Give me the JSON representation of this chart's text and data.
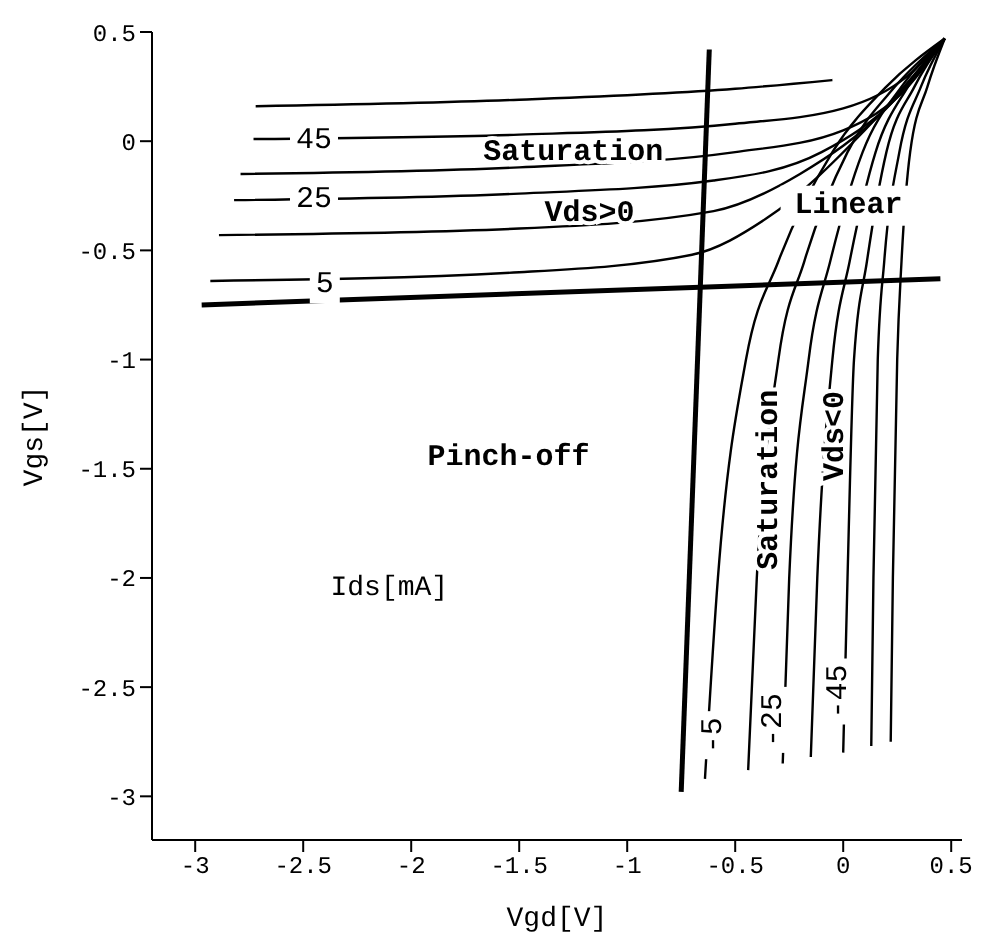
{
  "chart_data": {
    "type": "line",
    "xlabel": "Vgd[V]",
    "ylabel": "Vgs[V]",
    "xlim": [
      -3.2,
      0.55
    ],
    "ylim": [
      -3.2,
      0.5
    ],
    "xticks": [
      -3,
      -2.5,
      -2,
      -1.5,
      -1,
      -0.5,
      0,
      0.5
    ],
    "yticks": [
      -3,
      -2.5,
      -2,
      -1.5,
      -1,
      -0.5,
      0,
      0.5
    ],
    "marker": "none",
    "line_style": "solid",
    "series": [
      {
        "color": "#000000",
        "x": [
          -2.72,
          -1.5,
          -0.5,
          -0.05
        ],
        "values": [
          0.16,
          0.19,
          0.24,
          0.28
        ]
      },
      {
        "color": "#000000",
        "x": [
          -2.73,
          -1.5,
          -0.5,
          0,
          0.3,
          0.47
        ],
        "values": [
          0.01,
          0.03,
          0.08,
          0.15,
          0.3,
          0.47
        ]
      },
      {
        "color": "#000000",
        "x": [
          -2.79,
          -1.5,
          -0.5,
          0,
          0.3,
          0.47
        ],
        "values": [
          -0.15,
          -0.12,
          -0.05,
          0.05,
          0.25,
          0.47
        ]
      },
      {
        "color": "#000000",
        "x": [
          -2.82,
          -1.5,
          -0.6,
          -0.1,
          0.25,
          0.47
        ],
        "values": [
          -0.27,
          -0.24,
          -0.18,
          -0.05,
          0.2,
          0.47
        ]
      },
      {
        "color": "#000000",
        "x": [
          -2.89,
          -1.5,
          -0.6,
          -0.2,
          0.2,
          0.47
        ],
        "values": [
          -0.43,
          -0.4,
          -0.32,
          -0.15,
          0.15,
          0.47
        ]
      },
      {
        "color": "#000000",
        "x": [
          -2.93,
          -1.5,
          -0.7,
          -0.35,
          0.1,
          0.47
        ],
        "values": [
          -0.64,
          -0.6,
          -0.52,
          -0.35,
          0.05,
          0.47
        ]
      },
      {
        "color": "#000000",
        "x": [
          -0.64,
          -0.58,
          -0.45,
          -0.3,
          -0.05,
          0.2,
          0.47
        ],
        "values": [
          -2.92,
          -2,
          -1,
          -0.55,
          -0.05,
          0.25,
          0.47
        ]
      },
      {
        "color": "#000000",
        "x": [
          -0.44,
          -0.4,
          -0.3,
          -0.18,
          0.02,
          0.24,
          0.47
        ],
        "values": [
          -2.88,
          -2,
          -1,
          -0.55,
          -0.05,
          0.25,
          0.47
        ]
      },
      {
        "color": "#000000",
        "x": [
          -0.28,
          -0.25,
          -0.16,
          -0.06,
          0.09,
          0.27,
          0.47
        ],
        "values": [
          -2.85,
          -2,
          -1,
          -0.55,
          -0.05,
          0.25,
          0.47
        ]
      },
      {
        "color": "#000000",
        "x": [
          -0.15,
          -0.12,
          -0.05,
          0.03,
          0.15,
          0.3,
          0.47
        ],
        "values": [
          -2.82,
          -2,
          -1,
          -0.55,
          -0.05,
          0.25,
          0.47
        ]
      },
      {
        "color": "#000000",
        "x": [
          0,
          0.02,
          0.05,
          0.11,
          0.2,
          0.33,
          0.47
        ],
        "values": [
          -2.8,
          -2,
          -1,
          -0.55,
          -0.05,
          0.25,
          0.47
        ]
      },
      {
        "color": "#000000",
        "x": [
          0.13,
          0.14,
          0.16,
          0.19,
          0.26,
          0.36,
          0.47
        ],
        "values": [
          -2.77,
          -2,
          -1,
          -0.55,
          -0.05,
          0.25,
          0.47
        ]
      },
      {
        "color": "#000000",
        "x": [
          0.22,
          0.23,
          0.25,
          0.27,
          0.31,
          0.39,
          0.47
        ],
        "values": [
          -2.75,
          -2,
          -1,
          -0.55,
          -0.05,
          0.25,
          0.47
        ]
      },
      {
        "color": "#000000",
        "x": [
          -2.97,
          0.45
        ],
        "values": [
          -0.75,
          -0.63
        ]
      },
      {
        "color": "#000000",
        "x": [
          -0.62,
          -0.75
        ],
        "values": [
          0.42,
          -2.98
        ]
      }
    ],
    "annotations": [
      {
        "text": "45",
        "x": -2.45,
        "y": 0.0
      },
      {
        "text": "25",
        "x": -2.45,
        "y": -0.27
      },
      {
        "text": "5",
        "x": -2.4,
        "y": -0.66
      },
      "Saturation",
      "Vds>0",
      "Linear",
      "Pinch-off",
      "Ids[mA]",
      "Saturation",
      "Vds<0",
      {
        "text": "-5",
        "x": -0.6,
        "y": -2.72
      },
      {
        "text": "-25",
        "x": -0.32,
        "y": -2.65
      },
      {
        "text": "-45",
        "x": -0.02,
        "y": -2.52
      }
    ]
  }
}
